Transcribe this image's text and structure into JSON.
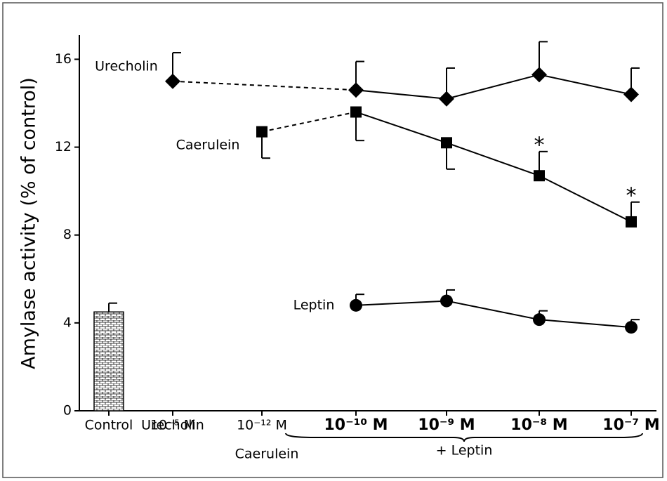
{
  "chart_data": {
    "type": "line",
    "y_label": "Amylase activity (% of control)",
    "categories": [
      "Control",
      "10⁻⁵ M",
      "10⁻¹² M",
      "10⁻¹⁰ M",
      "10⁻⁹ M",
      "10⁻⁸ M",
      "10⁻⁷ M"
    ],
    "category_sublabels": [
      null,
      "Urecholin",
      "Caerulein",
      null,
      null,
      null,
      null
    ],
    "groups": [
      {
        "label": "+ Leptin",
        "from": 3,
        "to": 6
      }
    ],
    "ylim": [
      0,
      17.1
    ],
    "yticks": [
      0,
      4,
      8,
      12,
      16
    ],
    "series": [
      {
        "kind": "bar",
        "color": "#000000",
        "values": [
          4.5,
          null,
          null,
          null,
          null,
          null,
          null
        ],
        "errors": [
          0.4,
          null,
          null,
          null,
          null,
          null,
          null
        ],
        "error_side": [
          "up",
          null,
          null,
          null,
          null,
          null,
          null
        ]
      },
      {
        "name": "Urecholin",
        "marker": "diamond",
        "color": "#000000",
        "dashed_to": 3,
        "values": [
          null,
          15.0,
          null,
          14.6,
          14.2,
          15.3,
          14.4
        ],
        "errors": [
          null,
          1.3,
          null,
          1.3,
          1.4,
          1.5,
          1.2
        ],
        "error_side": [
          null,
          "up",
          null,
          "up",
          "up",
          "up",
          "up"
        ]
      },
      {
        "name": "Caerulein",
        "marker": "square",
        "color": "#000000",
        "dashed_to": 3,
        "values": [
          null,
          null,
          12.7,
          13.6,
          12.2,
          10.7,
          8.6
        ],
        "errors": [
          null,
          null,
          1.2,
          1.3,
          1.2,
          1.1,
          0.9
        ],
        "error_side": [
          null,
          null,
          "down",
          "down",
          "down",
          "up",
          "up"
        ],
        "significance": [
          null,
          null,
          null,
          null,
          null,
          "*",
          "*"
        ]
      },
      {
        "name": "Leptin",
        "marker": "circle",
        "color": "#000000",
        "values": [
          null,
          null,
          null,
          4.8,
          5.0,
          4.15,
          3.8
        ],
        "errors": [
          null,
          null,
          null,
          0.5,
          0.5,
          0.4,
          0.35
        ],
        "error_side": [
          null,
          null,
          null,
          "up",
          "up",
          "up",
          "up"
        ]
      }
    ]
  }
}
